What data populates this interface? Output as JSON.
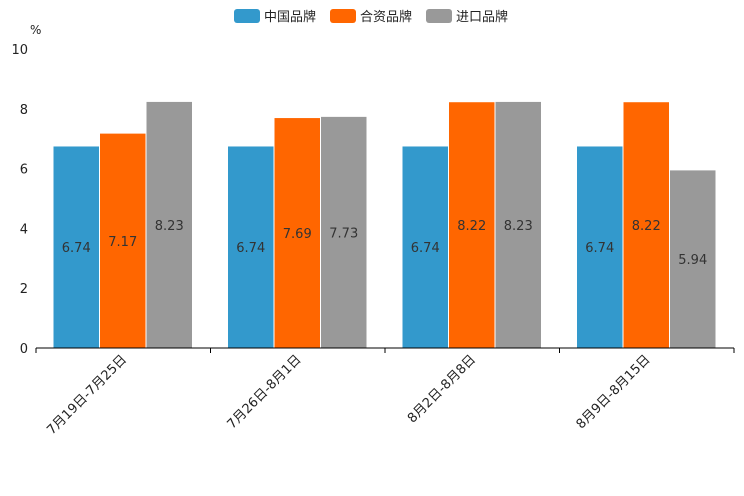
{
  "chart_data": {
    "type": "bar",
    "unit": "%",
    "categories": [
      "7月19日-7月25日",
      "7月26日-8月1日",
      "8月2日-8月8日",
      "8月9日-8月15日"
    ],
    "series": [
      {
        "name": "中国品牌",
        "color": "#3399cc",
        "values": [
          6.74,
          6.74,
          6.74,
          6.74
        ]
      },
      {
        "name": "合资品牌",
        "color": "#ff6600",
        "values": [
          7.17,
          7.69,
          8.22,
          8.22
        ]
      },
      {
        "name": "进口品牌",
        "color": "#999999",
        "values": [
          8.23,
          7.73,
          8.23,
          5.94
        ]
      }
    ],
    "ylim": [
      0,
      10
    ],
    "yticks": [
      "0",
      "2",
      "4",
      "6",
      "8",
      "10"
    ],
    "legend_position": "top-center",
    "grid": false
  }
}
